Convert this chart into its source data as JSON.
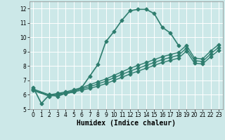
{
  "xlabel": "Humidex (Indice chaleur)",
  "background_color": "#cce8e8",
  "grid_color": "#ffffff",
  "line_color": "#2e7d6e",
  "xlim": [
    -0.5,
    23.5
  ],
  "ylim": [
    5,
    12.5
  ],
  "yticks": [
    5,
    6,
    7,
    8,
    9,
    10,
    11,
    12
  ],
  "xticks": [
    0,
    1,
    2,
    3,
    4,
    5,
    6,
    7,
    8,
    9,
    10,
    11,
    12,
    13,
    14,
    15,
    16,
    17,
    18,
    19,
    20,
    21,
    22,
    23
  ],
  "series": [
    {
      "x": [
        0,
        1,
        2,
        3,
        4,
        5,
        6,
        7,
        8,
        9,
        10,
        11,
        12,
        13,
        14,
        15,
        16,
        17,
        18
      ],
      "y": [
        6.5,
        5.4,
        6.0,
        5.9,
        6.1,
        6.2,
        6.5,
        7.3,
        8.1,
        9.7,
        10.4,
        11.2,
        11.85,
        11.95,
        11.95,
        11.65,
        10.7,
        10.3,
        9.45
      ],
      "marker": "D",
      "markersize": 2.5,
      "linewidth": 1.2
    },
    {
      "x": [
        0,
        2,
        3,
        4,
        5,
        6,
        7,
        8,
        9,
        10,
        11,
        12,
        13,
        14,
        15,
        16,
        17,
        18,
        19,
        20,
        21,
        22,
        23
      ],
      "y": [
        6.4,
        6.0,
        6.1,
        6.2,
        6.35,
        6.5,
        6.7,
        6.9,
        7.1,
        7.35,
        7.6,
        7.85,
        8.05,
        8.25,
        8.45,
        8.65,
        8.8,
        8.95,
        9.45,
        8.55,
        8.5,
        9.05,
        9.5
      ],
      "marker": "D",
      "markersize": 2.5,
      "linewidth": 1.0
    },
    {
      "x": [
        0,
        2,
        3,
        4,
        5,
        6,
        7,
        8,
        9,
        10,
        11,
        12,
        13,
        14,
        15,
        16,
        17,
        18,
        19,
        20,
        21,
        22,
        23
      ],
      "y": [
        6.35,
        5.95,
        6.05,
        6.15,
        6.28,
        6.42,
        6.57,
        6.75,
        6.95,
        7.18,
        7.42,
        7.65,
        7.85,
        8.05,
        8.25,
        8.45,
        8.6,
        8.75,
        9.25,
        8.38,
        8.32,
        8.85,
        9.3
      ],
      "marker": "D",
      "markersize": 2.5,
      "linewidth": 1.0
    },
    {
      "x": [
        0,
        2,
        3,
        4,
        5,
        6,
        7,
        8,
        9,
        10,
        11,
        12,
        13,
        14,
        15,
        16,
        17,
        18,
        19,
        20,
        21,
        22,
        23
      ],
      "y": [
        6.3,
        5.9,
        6.0,
        6.08,
        6.2,
        6.33,
        6.45,
        6.6,
        6.78,
        7.0,
        7.22,
        7.45,
        7.65,
        7.85,
        8.05,
        8.25,
        8.4,
        8.55,
        9.05,
        8.2,
        8.15,
        8.65,
        9.1
      ],
      "marker": "D",
      "markersize": 2.5,
      "linewidth": 1.0
    }
  ]
}
